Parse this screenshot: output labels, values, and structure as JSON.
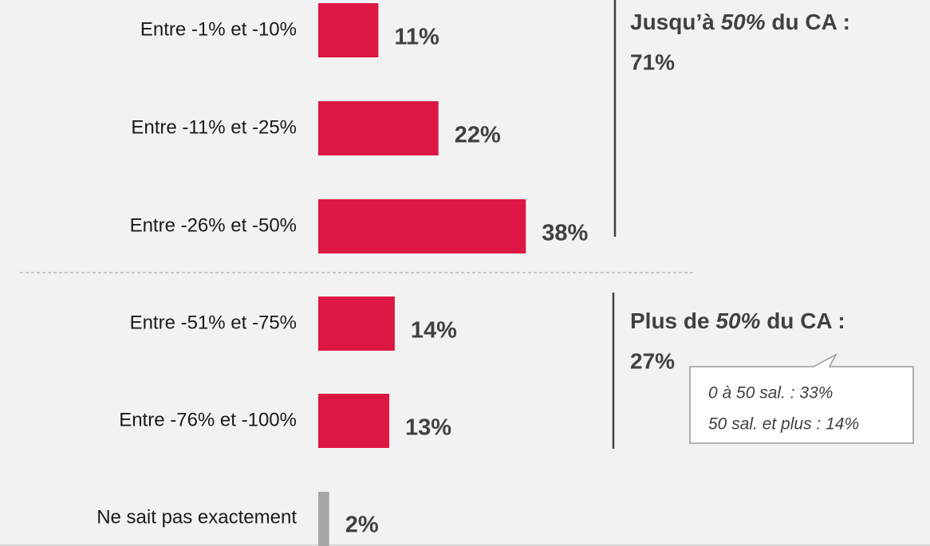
{
  "chart_data": {
    "type": "hbar",
    "categories": [
      "Entre -1% et -10%",
      "Entre -11% et -25%",
      "Entre -26% et -50%",
      "Entre -51% et -75%",
      "Entre -76% et -100%",
      "Ne sait pas exactement"
    ],
    "values": [
      11,
      22,
      38,
      14,
      13,
      2
    ],
    "value_labels": [
      "11%",
      "22%",
      "38%",
      "14%",
      "13%",
      "2%"
    ],
    "colors": [
      "#dc1743",
      "#dc1743",
      "#dc1743",
      "#dc1743",
      "#dc1743",
      "#a6a6a6"
    ],
    "annotations": [
      {
        "prefix": "Jusqu’à",
        "emphasis": "50%",
        "suffix": "du CA :",
        "total": "71%"
      },
      {
        "prefix": "Plus de",
        "emphasis": "50%",
        "suffix": "du CA :",
        "total": "27%"
      }
    ],
    "callout": [
      "0 à 50 sal. : 33%",
      "50 sal. et plus : 14%"
    ]
  }
}
